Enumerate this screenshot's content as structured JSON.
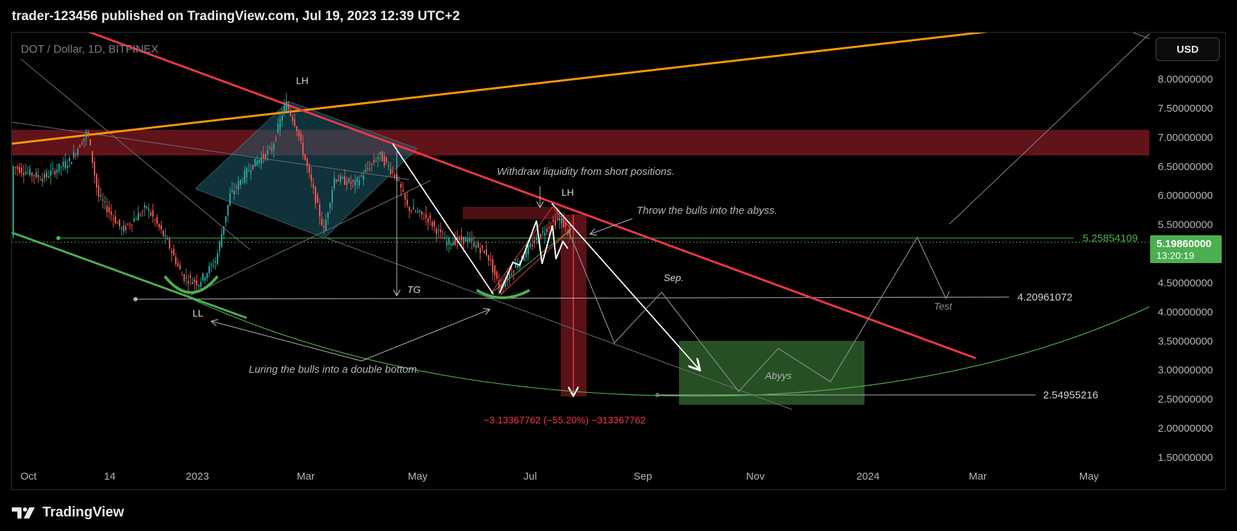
{
  "header": {
    "publish_line": "trader-123456 published on TradingView.com, Jul 19, 2023 12:39 UTC+2"
  },
  "footer": {
    "brand": "TradingView"
  },
  "toolbar": {
    "currency_label": "USD"
  },
  "chart_data": {
    "type": "candlestick",
    "symbol_line": "DOT / Dollar, 1D, BITFINEX",
    "y_ticks": [
      "8.00000000",
      "7.50000000",
      "7.00000000",
      "6.50000000",
      "6.00000000",
      "5.50000000",
      "4.50000000",
      "4.00000000",
      "3.50000000",
      "3.00000000",
      "2.50000000",
      "2.00000000",
      "1.50000000"
    ],
    "y_tick_values": [
      8.0,
      7.5,
      7.0,
      6.5,
      6.0,
      5.5,
      4.5,
      4.0,
      3.5,
      3.0,
      2.5,
      2.0,
      1.5
    ],
    "x_ticks": [
      "Oct",
      "14",
      "2023",
      "Mar",
      "May",
      "Jul",
      "Sep",
      "Nov",
      "2024",
      "Mar",
      "May"
    ],
    "current_price": {
      "value": "5.19860000",
      "countdown": "13:20:19"
    },
    "levels": [
      {
        "value": "5.25854109",
        "color": "#4caf50"
      },
      {
        "value": "4.20961072",
        "color": "#b2b5be"
      },
      {
        "value": "2.54955216",
        "color": "#b2b5be"
      }
    ],
    "zones": {
      "resistance": {
        "from": 6.7,
        "to": 7.1
      }
    },
    "annotations": {
      "lh1": "LH",
      "lh2": "LH",
      "ll": "LL",
      "tg": "TG",
      "sep": "Sep.",
      "test": "Test",
      "abyys": "Abyys",
      "withdraw": "Withdraw liquidity from short positions.",
      "throw": "Throw the bulls into the abyss.",
      "luring": "Luring the bulls into a double bottom.",
      "measure": "−3.13367762 (−55.20%) −313367762"
    },
    "colors": {
      "up": "#26a69a",
      "down": "#ef5350",
      "trend_red": "#f23645",
      "trend_orange": "#ff9800",
      "zone_red": "#801922",
      "zone_green": "#2e5d2a",
      "diamond": "#1e5b6b",
      "price_badge": "#4caf50"
    }
  }
}
